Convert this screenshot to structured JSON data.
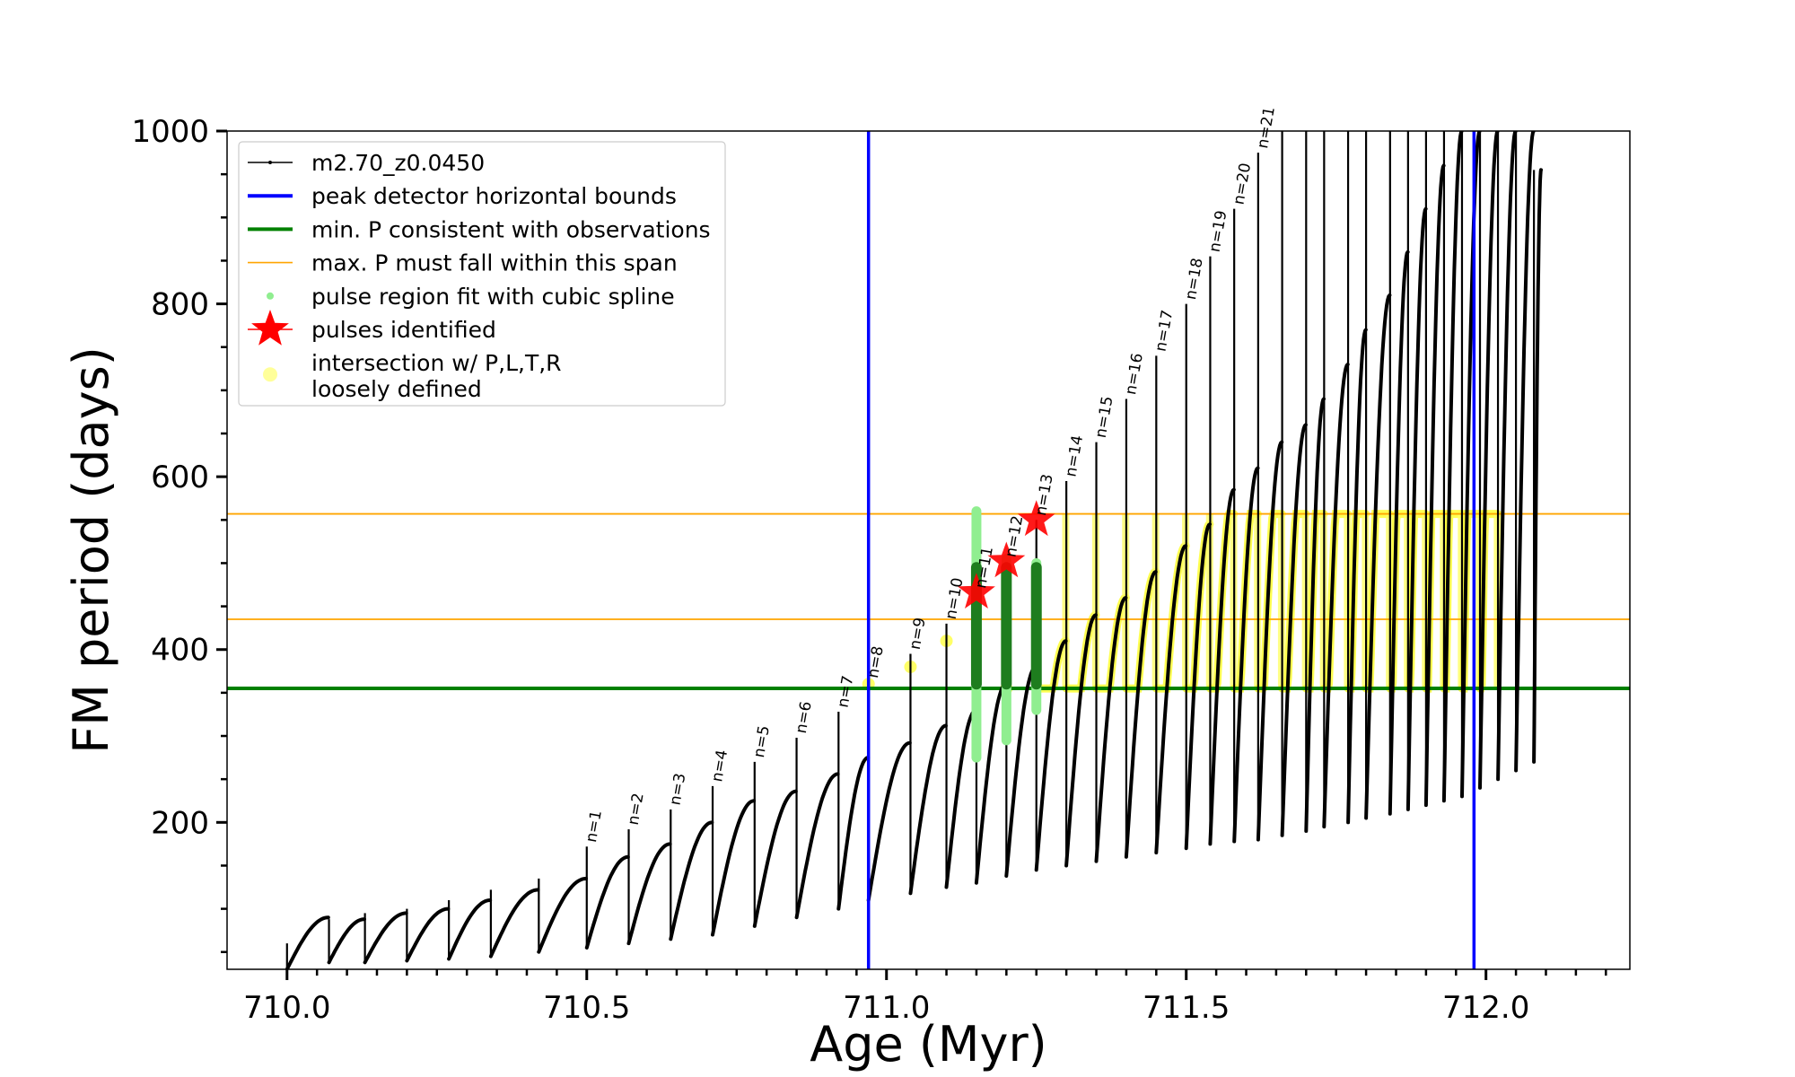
{
  "chart_data": {
    "type": "line",
    "xlabel": "Age (Myr)",
    "ylabel": "FM period (days)",
    "xlim": [
      709.9,
      712.24
    ],
    "ylim": [
      30,
      1000
    ],
    "xticks": [
      710.0,
      710.5,
      711.0,
      711.5,
      712.0
    ],
    "xtick_labels": [
      "710.0",
      "710.5",
      "711.0",
      "711.5",
      "712.0"
    ],
    "yticks": [
      200,
      400,
      600,
      800,
      1000
    ],
    "ytick_labels": [
      "200",
      "400",
      "600",
      "800",
      "1000"
    ],
    "legend_position": "upper-left",
    "legend": [
      {
        "label": "m2.70_z0.0450",
        "kind": "line-marker",
        "color": "#000000"
      },
      {
        "label": "peak detector horizontal bounds",
        "kind": "line",
        "color": "#0000ff"
      },
      {
        "label": "min. P consistent with observations",
        "kind": "line",
        "color": "#008000"
      },
      {
        "label": "max. P must fall within this span",
        "kind": "thin-line",
        "color": "#ffa500"
      },
      {
        "label": "pulse region fit with cubic spline",
        "kind": "dot",
        "color": "#90ee90"
      },
      {
        "label": "pulses identified",
        "kind": "star",
        "color": "#ff0000"
      },
      {
        "label": "intersection w/ P,L,T,R\nloosely defined",
        "kind": "dot",
        "color": "#ffff99"
      }
    ],
    "vertical_lines": [
      {
        "x": 710.97,
        "color": "#0000ff",
        "role": "peak detector horizontal bounds"
      },
      {
        "x": 711.98,
        "color": "#0000ff",
        "role": "peak detector horizontal bounds"
      }
    ],
    "horizontal_lines": [
      {
        "y": 355,
        "color": "#008000",
        "role": "min. P consistent with observations"
      },
      {
        "y": 435,
        "color": "#ffa500",
        "role": "max. P span lower"
      },
      {
        "y": 557,
        "color": "#ffa500",
        "role": "max. P span upper"
      }
    ],
    "pulses": [
      {
        "x": 710.0,
        "min": 30,
        "max": 60,
        "rise_to": 90
      },
      {
        "x": 710.07,
        "min": 38,
        "max": 88,
        "rise_to": 88
      },
      {
        "x": 710.13,
        "min": 38,
        "max": 95,
        "rise_to": 95
      },
      {
        "x": 710.2,
        "min": 40,
        "max": 100,
        "rise_to": 100
      },
      {
        "x": 710.27,
        "min": 42,
        "max": 110,
        "rise_to": 110
      },
      {
        "x": 710.34,
        "min": 45,
        "max": 122,
        "rise_to": 122
      },
      {
        "x": 710.42,
        "min": 50,
        "max": 135,
        "rise_to": 135
      },
      {
        "x": 710.5,
        "min": 55,
        "max": 172,
        "rise_to": 160,
        "label": "n=1"
      },
      {
        "x": 710.57,
        "min": 60,
        "max": 192,
        "rise_to": 175,
        "label": "n=2"
      },
      {
        "x": 710.64,
        "min": 65,
        "max": 215,
        "rise_to": 200,
        "label": "n=3"
      },
      {
        "x": 710.71,
        "min": 70,
        "max": 242,
        "rise_to": 225,
        "label": "n=4"
      },
      {
        "x": 710.78,
        "min": 80,
        "max": 270,
        "rise_to": 236,
        "label": "n=5"
      },
      {
        "x": 710.85,
        "min": 90,
        "max": 298,
        "rise_to": 256,
        "label": "n=6"
      },
      {
        "x": 710.92,
        "min": 100,
        "max": 328,
        "rise_to": 275,
        "label": "n=7"
      },
      {
        "x": 710.97,
        "min": 110,
        "max": 362,
        "rise_to": 292,
        "label": "n=8"
      },
      {
        "x": 711.04,
        "min": 118,
        "max": 395,
        "rise_to": 312,
        "label": "n=9"
      },
      {
        "x": 711.1,
        "min": 125,
        "max": 430,
        "rise_to": 330,
        "label": "n=10"
      },
      {
        "x": 711.15,
        "min": 130,
        "max": 466,
        "rise_to": 360,
        "label": "n=11"
      },
      {
        "x": 711.2,
        "min": 138,
        "max": 502,
        "rise_to": 380,
        "label": "n=12"
      },
      {
        "x": 711.25,
        "min": 145,
        "max": 550,
        "rise_to": 410,
        "label": "n=13"
      },
      {
        "x": 711.3,
        "min": 150,
        "max": 595,
        "rise_to": 440,
        "label": "n=14"
      },
      {
        "x": 711.35,
        "min": 155,
        "max": 640,
        "rise_to": 460,
        "label": "n=15"
      },
      {
        "x": 711.4,
        "min": 160,
        "max": 690,
        "rise_to": 490,
        "label": "n=16"
      },
      {
        "x": 711.45,
        "min": 165,
        "max": 740,
        "rise_to": 520,
        "label": "n=17"
      },
      {
        "x": 711.5,
        "min": 170,
        "max": 800,
        "rise_to": 545,
        "label": "n=18"
      },
      {
        "x": 711.54,
        "min": 175,
        "max": 855,
        "rise_to": 585,
        "label": "n=19"
      },
      {
        "x": 711.58,
        "min": 178,
        "max": 910,
        "rise_to": 610,
        "label": "n=20"
      },
      {
        "x": 711.62,
        "min": 180,
        "max": 975,
        "rise_to": 640,
        "label": "n=21"
      },
      {
        "x": 711.66,
        "min": 185,
        "max": 1000,
        "rise_to": 660
      },
      {
        "x": 711.7,
        "min": 190,
        "max": 1000,
        "rise_to": 690
      },
      {
        "x": 711.73,
        "min": 195,
        "max": 1000,
        "rise_to": 730
      },
      {
        "x": 711.77,
        "min": 200,
        "max": 1000,
        "rise_to": 770
      },
      {
        "x": 711.8,
        "min": 205,
        "max": 1000,
        "rise_to": 810
      },
      {
        "x": 711.84,
        "min": 210,
        "max": 1000,
        "rise_to": 860
      },
      {
        "x": 711.87,
        "min": 215,
        "max": 1000,
        "rise_to": 910
      },
      {
        "x": 711.9,
        "min": 220,
        "max": 1000,
        "rise_to": 960
      },
      {
        "x": 711.93,
        "min": 225,
        "max": 1000,
        "rise_to": 1000
      },
      {
        "x": 711.96,
        "min": 230,
        "max": 1000,
        "rise_to": 1000
      },
      {
        "x": 711.99,
        "min": 240,
        "max": 1000,
        "rise_to": 1000
      },
      {
        "x": 712.02,
        "min": 250,
        "max": 1000,
        "rise_to": 1000
      },
      {
        "x": 712.05,
        "min": 260,
        "max": 1000,
        "rise_to": 1000
      },
      {
        "x": 712.08,
        "min": 270,
        "max": 955,
        "rise_to": 955
      }
    ],
    "spline_regions": [
      {
        "x": 711.15,
        "ymin": 275,
        "ymax": 560
      },
      {
        "x": 711.2,
        "ymin": 295,
        "ymax": 505
      },
      {
        "x": 711.25,
        "ymin": 330,
        "ymax": 500
      }
    ],
    "green_fit_regions": [
      {
        "x": 711.15,
        "ymin": 360,
        "ymax": 495
      },
      {
        "x": 711.2,
        "ymin": 360,
        "ymax": 495
      },
      {
        "x": 711.25,
        "ymin": 360,
        "ymax": 495
      }
    ],
    "pulses_identified": [
      {
        "x": 711.15,
        "y": 466
      },
      {
        "x": 711.2,
        "y": 502
      },
      {
        "x": 711.25,
        "y": 550
      }
    ],
    "intersection_x_range": [
      711.25,
      711.99
    ],
    "intersection_y_range": [
      355,
      557
    ],
    "intersection_points": [
      {
        "x": 710.97,
        "y": 360
      },
      {
        "x": 711.04,
        "y": 380
      },
      {
        "x": 711.1,
        "y": 410
      },
      {
        "x": 711.2,
        "y": 355
      }
    ]
  }
}
